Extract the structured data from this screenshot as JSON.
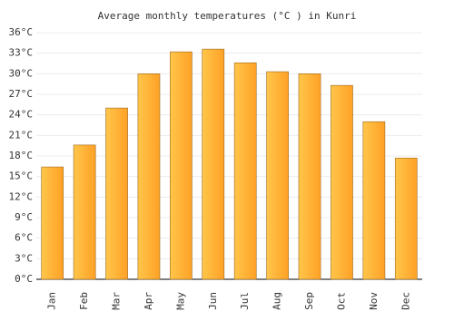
{
  "chart_data": {
    "type": "bar",
    "title": "Average monthly temperatures (°C ) in Kunri",
    "categories": [
      "Jan",
      "Feb",
      "Mar",
      "Apr",
      "May",
      "Jun",
      "Jul",
      "Aug",
      "Sep",
      "Oct",
      "Nov",
      "Dec"
    ],
    "values": [
      16.4,
      19.6,
      25.0,
      30.0,
      33.2,
      33.6,
      31.6,
      30.3,
      30.0,
      28.3,
      23.0,
      17.7
    ],
    "color": "#ffa126",
    "ylim": [
      0,
      36
    ],
    "yticks": [
      {
        "value": 0,
        "label": "0°C"
      },
      {
        "value": 3,
        "label": "3°C"
      },
      {
        "value": 6,
        "label": "6°C"
      },
      {
        "value": 9,
        "label": "9°C"
      },
      {
        "value": 12,
        "label": "12°C"
      },
      {
        "value": 15,
        "label": "15°C"
      },
      {
        "value": 18,
        "label": "18°C"
      },
      {
        "value": 21,
        "label": "21°C"
      },
      {
        "value": 24,
        "label": "24°C"
      },
      {
        "value": 27,
        "label": "27°C"
      },
      {
        "value": 30,
        "label": "30°C"
      },
      {
        "value": 33,
        "label": "33°C"
      },
      {
        "value": 36,
        "label": "36°C"
      }
    ],
    "grid": true
  }
}
